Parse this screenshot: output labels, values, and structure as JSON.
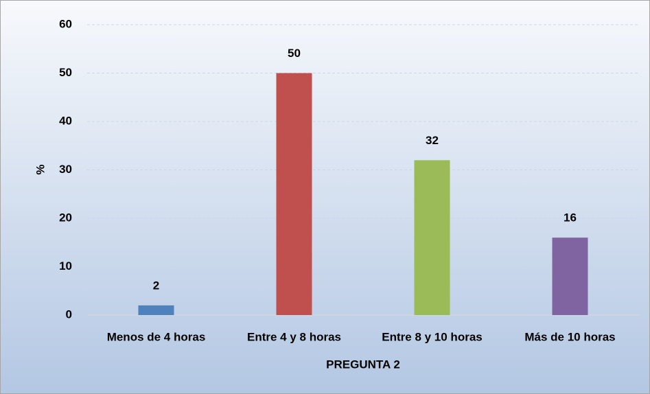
{
  "chart_data": {
    "type": "bar",
    "x_label": "PREGUNTA 2",
    "y_label": "%",
    "categories": [
      "Menos de 4 horas",
      "Entre 4 y 8 horas",
      "Entre 8 y 10 horas",
      "Más de 10 horas"
    ],
    "values": [
      2,
      50,
      32,
      16
    ],
    "colors": [
      "#4f81bd",
      "#c0504d",
      "#9bbb59",
      "#8064a2"
    ],
    "ylim": [
      0,
      60
    ],
    "yticks": [
      0,
      10,
      20,
      30,
      40,
      50,
      60
    ],
    "grid": true
  }
}
